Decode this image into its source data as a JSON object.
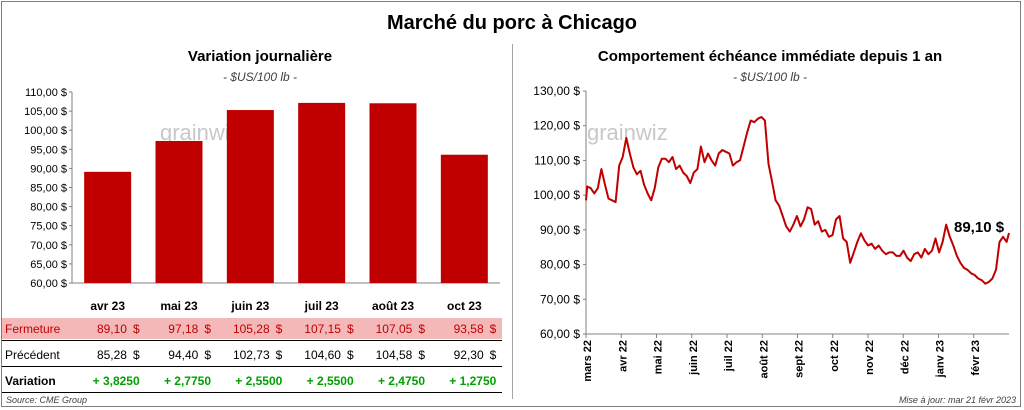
{
  "title": "Marché du porc à Chicago",
  "left": {
    "title": "Variation  journalière",
    "unit": "- $US/100 lb -",
    "watermark": "grainwiz"
  },
  "right": {
    "title": "Comportement  échéance immédiate depuis 1 an",
    "unit": "- $US/100 lb -",
    "watermark": "grainwiz",
    "last_label": "89,10 $"
  },
  "table": {
    "rows": [
      {
        "label": "Fermeture",
        "values": [
          "89,10",
          "97,18",
          "105,28",
          "107,15",
          "107,05",
          "93,58"
        ],
        "currency": "$"
      },
      {
        "label": "Précédent",
        "values": [
          "85,28",
          "94,40",
          "102,73",
          "104,60",
          "104,58",
          "92,30"
        ],
        "currency": "$"
      },
      {
        "label": "Variation",
        "values": [
          "+ 3,8250",
          "+ 2,7750",
          "+ 2,5500",
          "+ 2,5500",
          "+ 2,4750",
          "+ 1,2750"
        ],
        "currency": ""
      }
    ]
  },
  "footer": {
    "source": "Source: CME Group",
    "updated": "Mise à jour: mar 21 févr 2023"
  },
  "colors": {
    "bar": "#c00000",
    "line": "#c00000",
    "close_row": "#f4b8b8",
    "positive": "#00a000"
  },
  "chart_data": [
    {
      "type": "bar",
      "title": "Variation  journalière",
      "subtitle": "- $US/100 lb -",
      "categories": [
        "avr 23",
        "mai 23",
        "juin 23",
        "juil 23",
        "août 23",
        "oct 23"
      ],
      "values": [
        89.1,
        97.18,
        105.28,
        107.15,
        107.05,
        93.58
      ],
      "ylim": [
        60,
        110
      ],
      "yticks": [
        60,
        65,
        70,
        75,
        80,
        85,
        90,
        95,
        100,
        105,
        110
      ],
      "ytick_labels": [
        "60,00 $",
        "65,00 $",
        "70,00 $",
        "75,00 $",
        "80,00 $",
        "85,00 $",
        "90,00 $",
        "95,00 $",
        "100,00 $",
        "105,00 $",
        "110,00 $"
      ],
      "grid": false
    },
    {
      "type": "line",
      "title": "Comportement  échéance immédiate depuis 1 an",
      "subtitle": "- $US/100 lb -",
      "ylim": [
        60,
        130
      ],
      "yticks": [
        60,
        70,
        80,
        90,
        100,
        110,
        120,
        130
      ],
      "ytick_labels": [
        "60,00 $",
        "70,00 $",
        "80,00 $",
        "90,00 $",
        "100,00 $",
        "110,00 $",
        "120,00 $",
        "130,00 $"
      ],
      "xticks": [
        "mars 22",
        "avr 22",
        "mai 22",
        "juin 22",
        "juil 22",
        "août 22",
        "sept 22",
        "oct 22",
        "nov 22",
        "déc 22",
        "janv 23",
        "févr 23"
      ],
      "x_range": [
        "2022-03-01",
        "2023-02-21"
      ],
      "grid": false,
      "series": [
        {
          "x": [
            "2022-03-01",
            "2022-03-02",
            "2022-03-05",
            "2022-03-08",
            "2022-03-11",
            "2022-03-14",
            "2022-03-17",
            "2022-03-20",
            "2022-03-23",
            "2022-03-26",
            "2022-03-29",
            "2022-04-01",
            "2022-04-04",
            "2022-04-07",
            "2022-04-10",
            "2022-04-13",
            "2022-04-16",
            "2022-04-19",
            "2022-04-22",
            "2022-04-25",
            "2022-04-28",
            "2022-05-01",
            "2022-05-04",
            "2022-05-07",
            "2022-05-10",
            "2022-05-13",
            "2022-05-16",
            "2022-05-19",
            "2022-05-22",
            "2022-05-25",
            "2022-05-28",
            "2022-05-31",
            "2022-06-03",
            "2022-06-06",
            "2022-06-09",
            "2022-06-12",
            "2022-06-15",
            "2022-06-18",
            "2022-06-21",
            "2022-06-24",
            "2022-06-27",
            "2022-06-30",
            "2022-07-03",
            "2022-07-06",
            "2022-07-09",
            "2022-07-12",
            "2022-07-15",
            "2022-07-18",
            "2022-07-21",
            "2022-07-24",
            "2022-07-27",
            "2022-07-30",
            "2022-08-02",
            "2022-08-05",
            "2022-08-08",
            "2022-08-11",
            "2022-08-14",
            "2022-08-17",
            "2022-08-20",
            "2022-08-23",
            "2022-08-26",
            "2022-08-29",
            "2022-09-01",
            "2022-09-04",
            "2022-09-07",
            "2022-09-10",
            "2022-09-13",
            "2022-09-16",
            "2022-09-19",
            "2022-09-22",
            "2022-09-25",
            "2022-09-28",
            "2022-10-01",
            "2022-10-04",
            "2022-10-07",
            "2022-10-10",
            "2022-10-13",
            "2022-10-16",
            "2022-10-19",
            "2022-10-22",
            "2022-10-25",
            "2022-10-28",
            "2022-10-31",
            "2022-11-03",
            "2022-11-06",
            "2022-11-09",
            "2022-11-12",
            "2022-11-15",
            "2022-11-18",
            "2022-11-21",
            "2022-11-24",
            "2022-11-27",
            "2022-11-30",
            "2022-12-03",
            "2022-12-06",
            "2022-12-09",
            "2022-12-12",
            "2022-12-15",
            "2022-12-18",
            "2022-12-21",
            "2022-12-24",
            "2022-12-27",
            "2022-12-30",
            "2023-01-02",
            "2023-01-05",
            "2023-01-08",
            "2023-01-11",
            "2023-01-14",
            "2023-01-17",
            "2023-01-20",
            "2023-01-23",
            "2023-01-26",
            "2023-01-29",
            "2023-02-01",
            "2023-02-04",
            "2023-02-07",
            "2023-02-10",
            "2023-02-13",
            "2023-02-16",
            "2023-02-19",
            "2023-02-21"
          ],
          "y": [
            98.5,
            102.5,
            102.0,
            100.5,
            102.0,
            107.5,
            103.0,
            99.0,
            98.5,
            98.0,
            108.5,
            111.0,
            116.5,
            112.0,
            108.0,
            106.0,
            107.0,
            103.0,
            100.5,
            98.5,
            102.0,
            108.0,
            110.5,
            110.5,
            109.5,
            111.0,
            107.5,
            108.5,
            106.5,
            105.5,
            103.5,
            106.5,
            107.5,
            114.0,
            109.5,
            112.0,
            110.0,
            108.5,
            112.0,
            113.0,
            112.5,
            112.0,
            108.5,
            109.5,
            110.0,
            114.0,
            118.0,
            121.5,
            121.0,
            122.0,
            122.5,
            121.5,
            109.0,
            104.0,
            98.5,
            97.0,
            94.0,
            91.0,
            89.5,
            91.5,
            94.0,
            91.0,
            93.0,
            96.5,
            96.0,
            91.5,
            92.5,
            89.5,
            90.0,
            88.0,
            88.5,
            93.0,
            94.0,
            87.5,
            86.5,
            80.5,
            83.5,
            86.5,
            89.0,
            87.0,
            85.5,
            86.0,
            84.5,
            85.5,
            84.0,
            83.0,
            83.5,
            83.5,
            82.5,
            82.5,
            84.0,
            82.0,
            81.0,
            83.0,
            83.5,
            82.0,
            84.5,
            83.0,
            84.0,
            87.5,
            83.5,
            86.5,
            91.5,
            88.0,
            85.5,
            82.5,
            80.5,
            79.0,
            78.5,
            77.5,
            77.0,
            76.0,
            75.5,
            74.5,
            75.0,
            76.0,
            78.5,
            86.5,
            88.0,
            86.5,
            89.1
          ]
        }
      ],
      "annotations": [
        "89,10 $"
      ]
    }
  ]
}
